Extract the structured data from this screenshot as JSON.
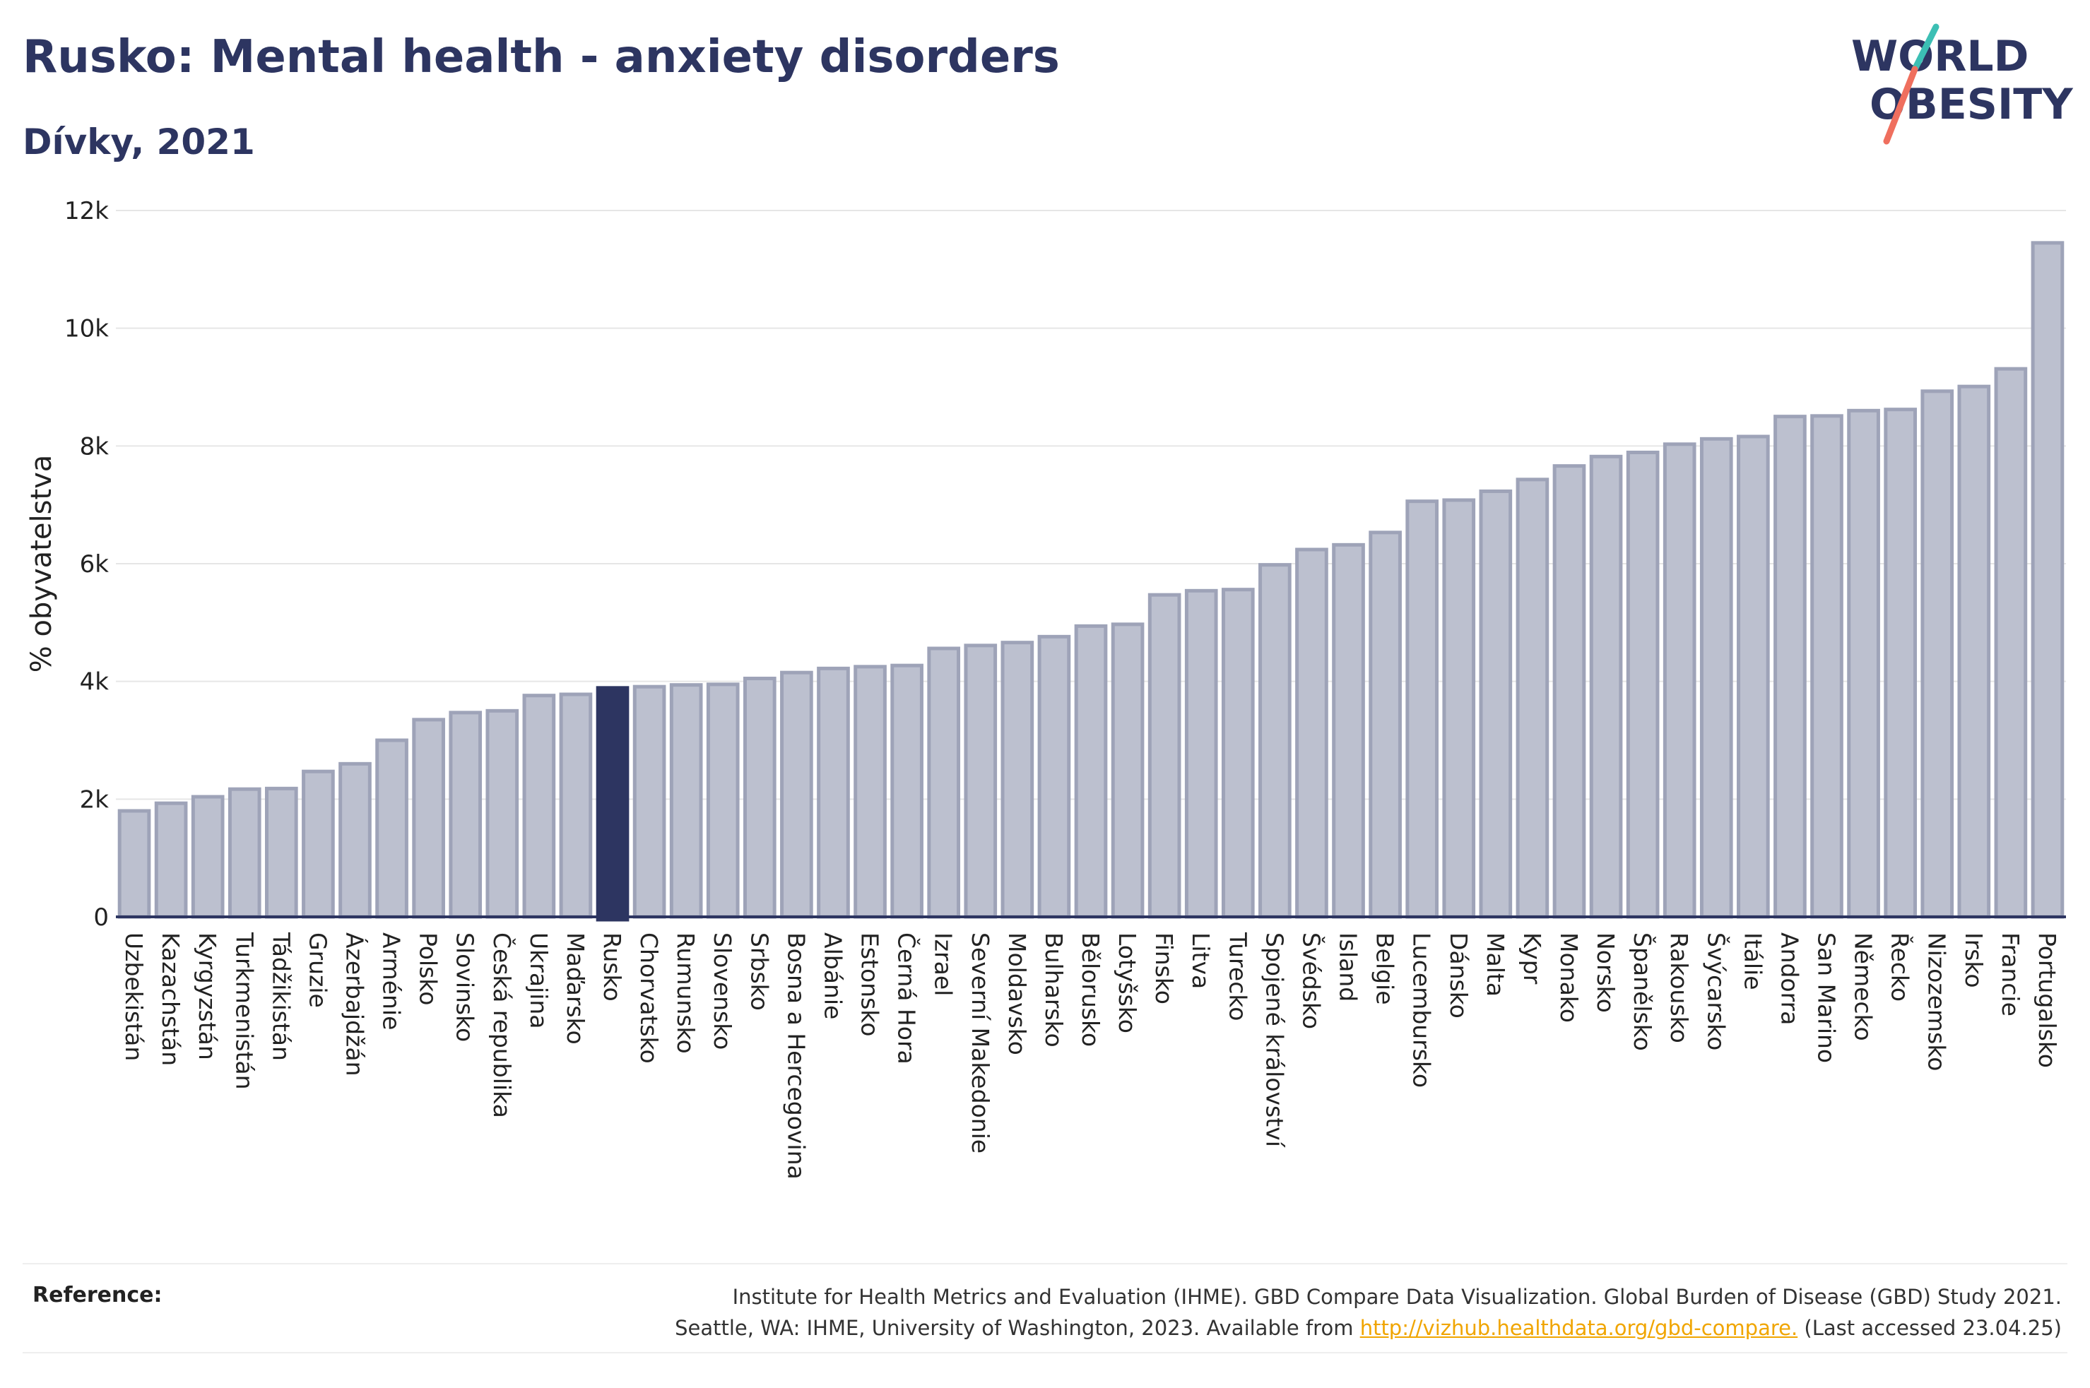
{
  "header": {
    "title": "Rusko: Mental health - anxiety disorders",
    "subtitle": "Dívky, 2021"
  },
  "logo": {
    "line1": "WORLD",
    "line2": "OBESITY",
    "accent_teal": "#3cbfb4",
    "accent_coral": "#ef6f5e",
    "color": "#2d3561"
  },
  "colors": {
    "bar": "#bcc0cf",
    "bar_stroke": "#9ea3b8",
    "highlight": "#2d3561",
    "grid": "#e6e6e6",
    "text": "#222222"
  },
  "chart_data": {
    "type": "bar",
    "ylabel": "% obyvatelstva",
    "ylim": [
      0,
      12000
    ],
    "yticks": [
      0,
      2000,
      4000,
      6000,
      8000,
      10000,
      12000
    ],
    "ytick_labels": [
      "0",
      "2k",
      "4k",
      "6k",
      "8k",
      "10k",
      "12k"
    ],
    "highlight": "Rusko",
    "categories": [
      "Uzbekistán",
      "Kazachstán",
      "Kyrgyzstán",
      "Turkmenistán",
      "Tádžikistán",
      "Gruzie",
      "Ázerbajdžán",
      "Arménie",
      "Polsko",
      "Slovinsko",
      "Česká republika",
      "Ukrajina",
      "Maďarsko",
      "Rusko",
      "Chorvatsko",
      "Rumunsko",
      "Slovensko",
      "Srbsko",
      "Bosna a Hercegovina",
      "Albánie",
      "Estonsko",
      "Černá Hora",
      "Izrael",
      "Severní Makedonie",
      "Moldavsko",
      "Bulharsko",
      "Bělorusko",
      "Lotyšsko",
      "Finsko",
      "Litva",
      "Turecko",
      "Spojené království",
      "Švédsko",
      "Island",
      "Belgie",
      "Lucembursko",
      "Dánsko",
      "Malta",
      "Kypr",
      "Monako",
      "Norsko",
      "Španělsko",
      "Rakousko",
      "Švýcarsko",
      "Itálie",
      "Andorra",
      "San Marino",
      "Německo",
      "Řecko",
      "Nizozemsko",
      "Irsko",
      "Francie",
      "Portugalsko"
    ],
    "values": [
      1800,
      1930,
      2040,
      2170,
      2180,
      2470,
      2600,
      3000,
      3350,
      3470,
      3500,
      3760,
      3780,
      3890,
      3910,
      3940,
      3950,
      4050,
      4150,
      4220,
      4250,
      4270,
      4560,
      4610,
      4660,
      4760,
      4940,
      4970,
      5470,
      5540,
      5560,
      5980,
      6240,
      6320,
      6530,
      7060,
      7080,
      7230,
      7430,
      7660,
      7820,
      7890,
      8030,
      8120,
      8160,
      8500,
      8510,
      8600,
      8620,
      8930,
      9010,
      9310,
      11450
    ]
  },
  "reference": {
    "label": "Reference:",
    "line1": "Institute for Health Metrics and Evaluation (IHME). GBD Compare Data Visualization. Global Burden of Disease (GBD) Study 2021.",
    "line2_pre": "Seattle, WA: IHME, University of Washington, 2023. Available from ",
    "link": "http://vizhub.healthdata.org/gbd-compare.",
    "line2_post": " (Last accessed 23.04.25)"
  }
}
